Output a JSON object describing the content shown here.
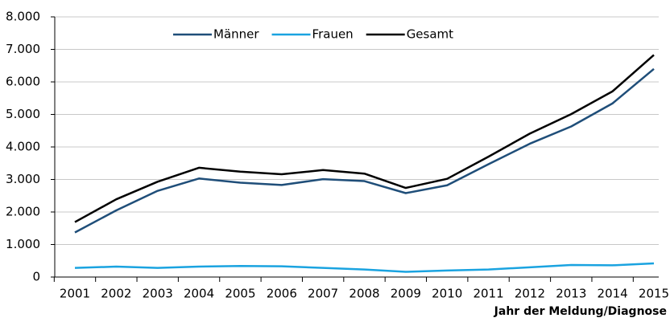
{
  "chart_data": {
    "type": "line",
    "x_label": "Jahr der Meldung/Diagnose",
    "categories": [
      "2001",
      "2002",
      "2003",
      "2004",
      "2005",
      "2006",
      "2007",
      "2008",
      "2009",
      "2010",
      "2011",
      "2012",
      "2013",
      "2014",
      "2015"
    ],
    "series": [
      {
        "name": "Männer",
        "color": "#1f4e79",
        "values": [
          1370,
          2050,
          2650,
          3030,
          2900,
          2830,
          3010,
          2950,
          2580,
          2820,
          3470,
          4100,
          4630,
          5340,
          6400
        ]
      },
      {
        "name": "Frauen",
        "color": "#1aa3e0",
        "values": [
          280,
          320,
          280,
          320,
          340,
          330,
          280,
          230,
          160,
          200,
          230,
          300,
          370,
          360,
          420
        ]
      },
      {
        "name": "Gesamt",
        "color": "#000000",
        "values": [
          1690,
          2390,
          2930,
          3360,
          3240,
          3160,
          3290,
          3180,
          2740,
          3020,
          3700,
          4410,
          5010,
          5710,
          6830
        ]
      }
    ],
    "ylim": [
      0,
      8000
    ],
    "yticks": [
      0,
      {
        "value": 1000,
        "label": "1.000"
      },
      {
        "value": 2000,
        "label": "2.000"
      },
      {
        "value": 3000,
        "label": "3.000"
      },
      {
        "value": 4000,
        "label": "4.000"
      },
      {
        "value": 5000,
        "label": "5.000"
      },
      {
        "value": 6000,
        "label": "6.000"
      },
      {
        "value": 7000,
        "label": "7.000"
      },
      {
        "value": 8000,
        "label": "8.000"
      }
    ],
    "grid": true,
    "legend": "top"
  }
}
